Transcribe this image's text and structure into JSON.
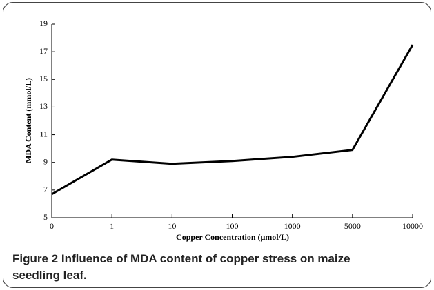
{
  "chart_data": {
    "type": "line",
    "x_label": "Copper Concentration (μmol/L)",
    "y_label": "MDA Content (mmol/L)",
    "categories": [
      "0",
      "1",
      "10",
      "100",
      "1000",
      "5000",
      "10000"
    ],
    "values": [
      6.7,
      9.2,
      8.9,
      9.1,
      9.4,
      9.9,
      17.5
    ],
    "color": "#000000",
    "ylim": [
      5,
      19
    ],
    "yticks": [
      5,
      7,
      9,
      11,
      13,
      15,
      17,
      19
    ],
    "caption_label": "Figure 2",
    "caption": "Influence of MDA content of copper stress on maize seedling leaf."
  }
}
